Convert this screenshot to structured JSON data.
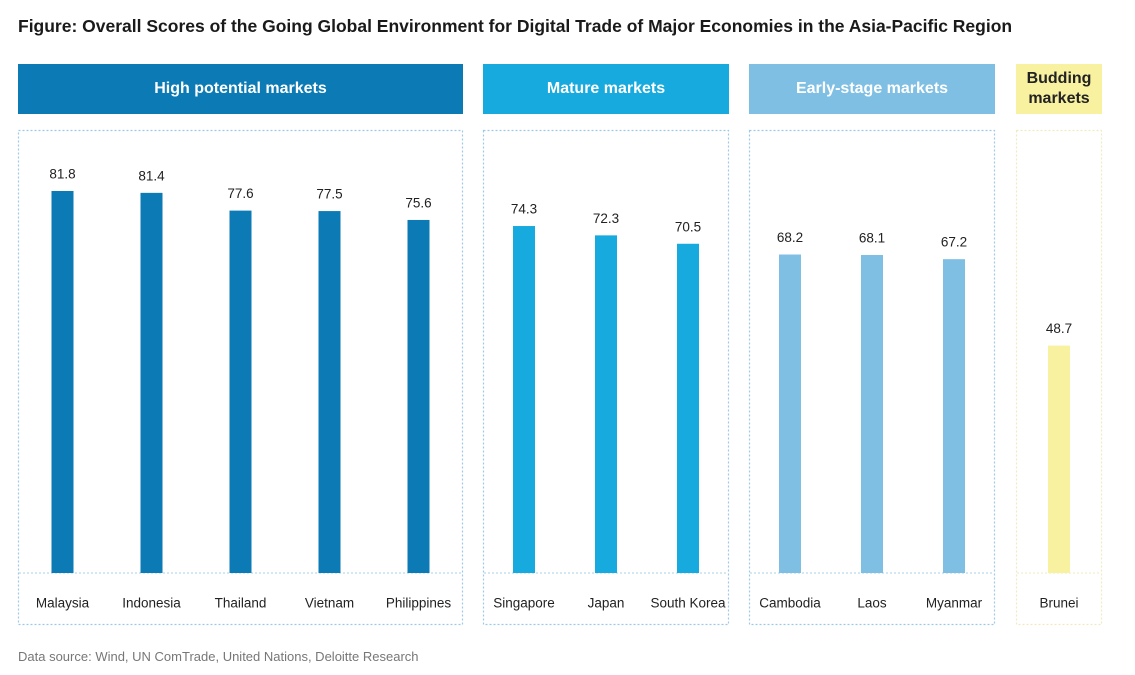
{
  "chart_data": {
    "type": "bar",
    "title": "Figure: Overall Scores of the Going Global Environment for Digital Trade of Major Economies in the Asia-Pacific Region",
    "source": "Data source: Wind, UN ComTrade, United Nations, Deloitte Research",
    "groups": [
      {
        "name": "High potential markets",
        "color": "#0b7ab5",
        "categories": [
          "Malaysia",
          "Indonesia",
          "Thailand",
          "Vietnam",
          "Philippines"
        ],
        "values": [
          81.8,
          81.4,
          77.6,
          77.5,
          75.6
        ]
      },
      {
        "name": "Mature markets",
        "color": "#17aadf",
        "categories": [
          "Singapore",
          "Japan",
          "South Korea"
        ],
        "values": [
          74.3,
          72.3,
          70.5
        ]
      },
      {
        "name": "Early-stage markets",
        "color": "#7fbfe4",
        "categories": [
          "Cambodia",
          "Laos",
          "Myanmar"
        ],
        "values": [
          68.2,
          68.1,
          67.2
        ]
      },
      {
        "name": "Budding markets",
        "color": "#f8f1a0",
        "categories": [
          "Brunei"
        ],
        "values": [
          48.7
        ]
      }
    ]
  }
}
